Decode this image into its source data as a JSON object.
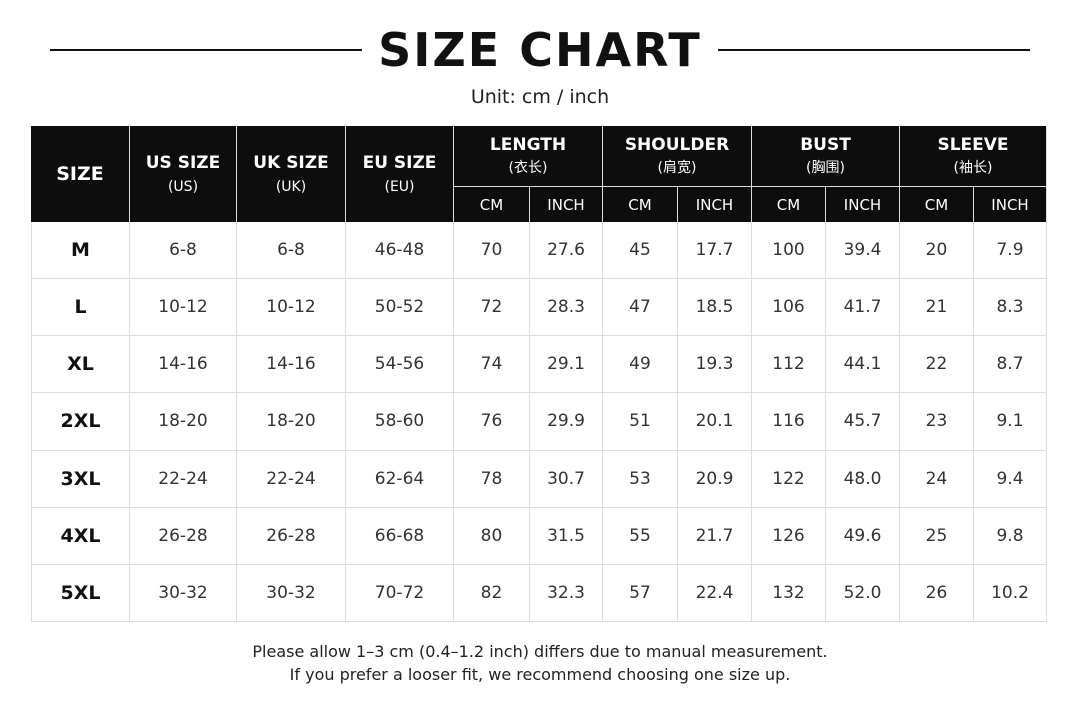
{
  "header": {
    "title": "SIZE CHART",
    "unit": "Unit: cm / inch"
  },
  "table": {
    "columns": [
      {
        "label": "SIZE"
      },
      {
        "label": "US SIZE",
        "sub": "(US)"
      },
      {
        "label": "UK SIZE",
        "sub": "(UK)"
      },
      {
        "label": "EU SIZE",
        "sub": "(EU)"
      },
      {
        "label": "LENGTH",
        "sub": "(衣长)",
        "units": [
          "CM",
          "INCH"
        ]
      },
      {
        "label": "SHOULDER",
        "sub": "(肩宽)",
        "units": [
          "CM",
          "INCH"
        ]
      },
      {
        "label": "BUST",
        "sub": "(胸围)",
        "units": [
          "CM",
          "INCH"
        ]
      },
      {
        "label": "SLEEVE",
        "sub": "(袖长)",
        "units": [
          "CM",
          "INCH"
        ]
      }
    ],
    "rows": [
      [
        "M",
        "6-8",
        "6-8",
        "46-48",
        "70",
        "27.6",
        "45",
        "17.7",
        "100",
        "39.4",
        "20",
        "7.9"
      ],
      [
        "L",
        "10-12",
        "10-12",
        "50-52",
        "72",
        "28.3",
        "47",
        "18.5",
        "106",
        "41.7",
        "21",
        "8.3"
      ],
      [
        "XL",
        "14-16",
        "14-16",
        "54-56",
        "74",
        "29.1",
        "49",
        "19.3",
        "112",
        "44.1",
        "22",
        "8.7"
      ],
      [
        "2XL",
        "18-20",
        "18-20",
        "58-60",
        "76",
        "29.9",
        "51",
        "20.1",
        "116",
        "45.7",
        "23",
        "9.1"
      ],
      [
        "3XL",
        "22-24",
        "22-24",
        "62-64",
        "78",
        "30.7",
        "53",
        "20.9",
        "122",
        "48.0",
        "24",
        "9.4"
      ],
      [
        "4XL",
        "26-28",
        "26-28",
        "66-68",
        "80",
        "31.5",
        "55",
        "21.7",
        "126",
        "49.6",
        "25",
        "9.8"
      ],
      [
        "5XL",
        "30-32",
        "30-32",
        "70-72",
        "82",
        "32.3",
        "57",
        "22.4",
        "132",
        "52.0",
        "26",
        "10.2"
      ]
    ]
  },
  "notes": [
    "Please allow 1–3  cm (0.4–1.2 inch) differs due to manual measurement.",
    "If you prefer a looser fit, we recommend choosing one size up."
  ]
}
